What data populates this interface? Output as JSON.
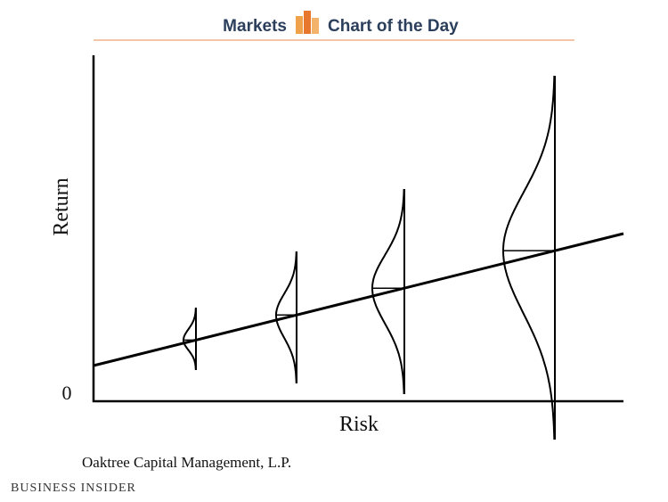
{
  "header": {
    "left": "Markets",
    "right": "Chart of the Day"
  },
  "diagram": {
    "y_axis_label": "Return",
    "x_axis_label": "Risk",
    "origin_label": "0"
  },
  "source": "Oaktree Capital Management, L.P.",
  "brand": "Business Insider"
}
